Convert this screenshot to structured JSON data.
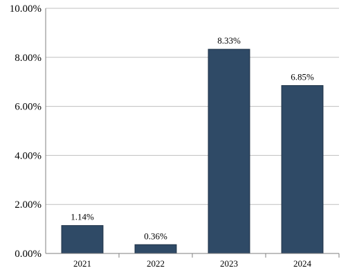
{
  "chart_data": {
    "type": "bar",
    "title": "",
    "xlabel": "",
    "ylabel": "",
    "categories": [
      "2021",
      "2022",
      "2023",
      "2024"
    ],
    "values": [
      1.14,
      0.36,
      8.33,
      6.85
    ],
    "data_labels": [
      "1.14%",
      "0.36%",
      "8.33%",
      "6.85%"
    ],
    "ylim": [
      0,
      10
    ],
    "yticks": [
      0,
      2,
      4,
      6,
      8,
      10
    ],
    "ytick_labels": [
      "0.00%",
      "2.00%",
      "4.00%",
      "6.00%",
      "8.00%",
      "10.00%"
    ],
    "grid": true,
    "legend": "none",
    "bar_color": "#2f4a66"
  }
}
